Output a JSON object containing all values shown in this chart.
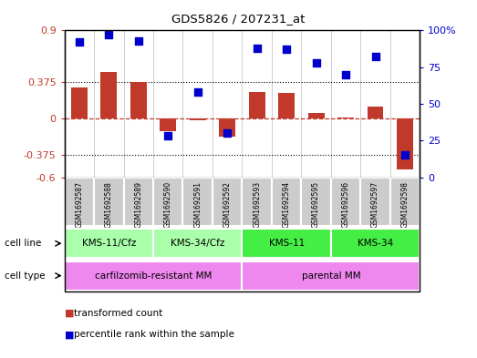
{
  "title": "GDS5826 / 207231_at",
  "samples": [
    "GSM1692587",
    "GSM1692588",
    "GSM1692589",
    "GSM1692590",
    "GSM1692591",
    "GSM1692592",
    "GSM1692593",
    "GSM1692594",
    "GSM1692595",
    "GSM1692596",
    "GSM1692597",
    "GSM1692598"
  ],
  "bar_values": [
    0.32,
    0.48,
    0.375,
    -0.13,
    -0.02,
    -0.19,
    0.27,
    0.26,
    0.06,
    0.01,
    0.12,
    -0.52
  ],
  "scatter_values": [
    92,
    97,
    93,
    28,
    58,
    30,
    88,
    87,
    78,
    70,
    82,
    15
  ],
  "bar_color": "#c0392b",
  "scatter_color": "#0000cc",
  "ylim_left": [
    -0.6,
    0.9
  ],
  "ylim_right": [
    0,
    100
  ],
  "yticks_left": [
    -0.6,
    -0.375,
    0,
    0.375,
    0.9
  ],
  "yticks_right": [
    0,
    25,
    50,
    75,
    100
  ],
  "hlines": [
    0.375,
    -0.375
  ],
  "hline_zero_color": "#c0392b",
  "hline_dotted_color": "#000000",
  "cell_line_groups": [
    {
      "label": "KMS-11/Cfz",
      "start": 0,
      "end": 3,
      "color": "#aaffaa"
    },
    {
      "label": "KMS-34/Cfz",
      "start": 3,
      "end": 6,
      "color": "#aaffaa"
    },
    {
      "label": "KMS-11",
      "start": 6,
      "end": 9,
      "color": "#44dd44"
    },
    {
      "label": "KMS-34",
      "start": 9,
      "end": 12,
      "color": "#44dd44"
    }
  ],
  "cell_type_groups": [
    {
      "label": "carfilzomib-resistant MM",
      "start": 0,
      "end": 6,
      "color": "#ee88ee"
    },
    {
      "label": "parental MM",
      "start": 6,
      "end": 12,
      "color": "#ee88ee"
    }
  ],
  "legend_items": [
    {
      "label": "transformed count",
      "color": "#c0392b"
    },
    {
      "label": "percentile rank within the sample",
      "color": "#0000cc"
    }
  ],
  "cell_line_label": "cell line",
  "cell_type_label": "cell type",
  "bar_width": 0.55,
  "scatter_marker_size": 35,
  "sample_bg_color": "#cccccc",
  "sample_border_color": "#ffffff"
}
